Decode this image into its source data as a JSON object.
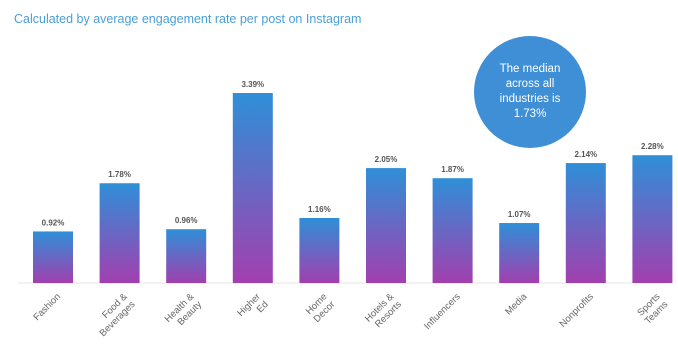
{
  "header": {
    "subtitle": "Calculated by average engagement rate per post on Instagram"
  },
  "callout": {
    "text": "The median\nacross all\nindustries is\n1.73%"
  },
  "colors": {
    "bar_top": "#2f8fd8",
    "bar_bottom": "#a23fae",
    "accent": "#3e8fd6",
    "subtitle": "#4a9fd6"
  },
  "chart_data": {
    "type": "bar",
    "title": "",
    "subtitle": "Calculated by average engagement rate per post on Instagram",
    "xlabel": "",
    "ylabel": "",
    "ylim": [
      0,
      3.39
    ],
    "grid": false,
    "legend": "none",
    "categories": [
      "Fashion",
      "Food & Beverages",
      "Health & Beauty",
      "Higher Ed",
      "Home Decor",
      "Hotels & Resorts",
      "Influencers",
      "Media",
      "Nonprofits",
      "Sports Teams"
    ],
    "category_lines": [
      [
        "Fashion"
      ],
      [
        "Food &",
        "Beverages"
      ],
      [
        "Health &",
        "Beauty"
      ],
      [
        "Higher",
        "Ed"
      ],
      [
        "Home",
        "Decor"
      ],
      [
        "Hotels &",
        "Resorts"
      ],
      [
        "Influencers"
      ],
      [
        "Media"
      ],
      [
        "Nonprofits"
      ],
      [
        "Sports",
        "Teams"
      ]
    ],
    "values": [
      0.92,
      1.78,
      0.96,
      3.39,
      1.16,
      2.05,
      1.87,
      1.07,
      2.14,
      2.28
    ],
    "data_labels": [
      "0.92%",
      "1.78%",
      "0.96%",
      "3.39%",
      "1.16%",
      "2.05%",
      "1.87%",
      "1.07%",
      "2.14%",
      "2.28%"
    ]
  }
}
